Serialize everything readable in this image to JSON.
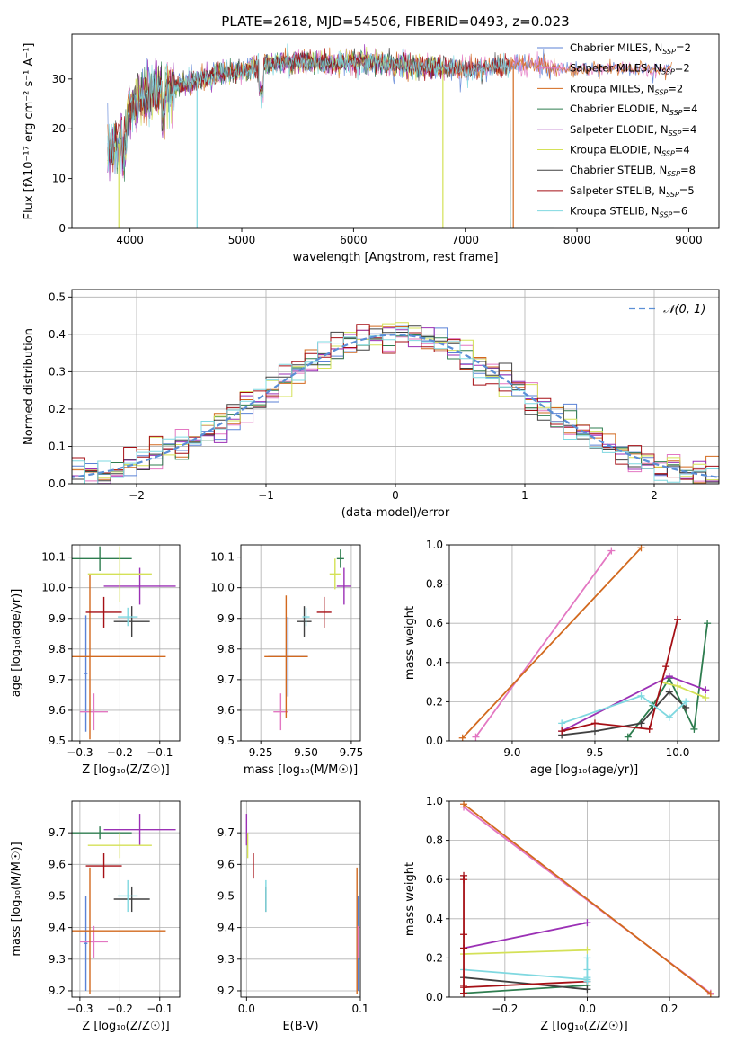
{
  "chart_data": [
    {
      "type": "line",
      "title": "PLATE=2618, MJD=54506, FIBERID=0493, z=0.023",
      "xlabel": "wavelength [Angstrom, rest frame]",
      "ylabel": "Flux [fλ10⁻¹⁷ erg cm⁻² s⁻¹ A⁻¹]",
      "xlim": [
        3480,
        9270
      ],
      "ylim": [
        0,
        39
      ],
      "xticks": [
        "4000",
        "5000",
        "6000",
        "7000",
        "8000",
        "9000"
      ],
      "yticks": [
        "0",
        "10",
        "20",
        "30"
      ],
      "legend_position": "upper right",
      "series": [
        {
          "name": "Chabrier MILES, N_SSP=2",
          "color": "#5b82d6"
        },
        {
          "name": "Salpeter MILES, N_SSP=2",
          "color": "#e377c2"
        },
        {
          "name": "Kroupa MILES, N_SSP=2",
          "color": "#d2691e"
        },
        {
          "name": "Chabrier ELODIE, N_SSP=4",
          "color": "#2e7d4f"
        },
        {
          "name": "Salpeter ELODIE, N_SSP=4",
          "color": "#9b30b5"
        },
        {
          "name": "Kroupa ELODIE, N_SSP=4",
          "color": "#d4e157"
        },
        {
          "name": "Chabrier STELIB, N_SSP=8",
          "color": "#404040"
        },
        {
          "name": "Salpeter STELIB, N_SSP=5",
          "color": "#a50f15"
        },
        {
          "name": "Kroupa STELIB, N_SSP=6",
          "color": "#7fd8e0"
        }
      ],
      "continuum": {
        "x": [
          3800,
          3900,
          4000,
          4100,
          4300,
          4500,
          4800,
          5000,
          5200,
          5500,
          5800,
          6000,
          6300,
          6600,
          7000,
          7300,
          7600,
          7800
        ],
        "y": [
          15,
          17,
          24,
          26,
          28,
          29,
          31,
          31.5,
          33,
          33.5,
          33,
          33.5,
          33,
          32.5,
          32,
          32.5,
          33,
          32
        ]
      },
      "drops_x": [
        3900,
        4600,
        6800,
        7430
      ]
    },
    {
      "type": "bar",
      "xlabel": "(data-model)/error",
      "ylabel": "Normed distribution",
      "xlim": [
        -2.5,
        2.5
      ],
      "ylim": [
        0,
        0.52
      ],
      "xticks": [
        "−2",
        "−1",
        "0",
        "1",
        "2"
      ],
      "yticks": [
        "0.0",
        "0.1",
        "0.2",
        "0.3",
        "0.4",
        "0.5"
      ],
      "legend": "𝒩(0, 1)",
      "reference_curve": "gaussian mean 0, sigma 1",
      "histogram_bin_width": 0.1
    },
    {
      "type": "scatter",
      "xlabel": "Z [log₁₀(Z/Z☉)]",
      "ylabel": "age  [log₁₀(age/yr)]",
      "xlim": [
        -0.32,
        -0.05
      ],
      "ylim": [
        9.5,
        10.14
      ],
      "xticks": [
        "−0.3",
        "−0.2",
        "−0.1"
      ],
      "yticks": [
        "9.5",
        "9.6",
        "9.7",
        "9.8",
        "9.9",
        "10.0",
        "10.1"
      ],
      "points": [
        {
          "color": "#5b82d6",
          "x": -0.285,
          "xerr": 0.004,
          "y": 9.72,
          "yerr": 0.19
        },
        {
          "color": "#e377c2",
          "x": -0.265,
          "xerr": 0.035,
          "y": 9.595,
          "yerr": 0.06
        },
        {
          "color": "#d2691e",
          "x": -0.275,
          "xerr": 0.19,
          "y": 9.775,
          "yerr": 0.27
        },
        {
          "color": "#2e7d4f",
          "x": -0.25,
          "xerr": 0.08,
          "y": 10.095,
          "yerr": 0.04
        },
        {
          "color": "#9b30b5",
          "x": -0.15,
          "xerr": 0.09,
          "y": 10.005,
          "yerr": 0.06
        },
        {
          "color": "#d4e157",
          "x": -0.2,
          "xerr": 0.08,
          "y": 10.045,
          "yerr": 0.09
        },
        {
          "color": "#404040",
          "x": -0.17,
          "xerr": 0.045,
          "y": 9.89,
          "yerr": 0.05
        },
        {
          "color": "#a50f15",
          "x": -0.24,
          "xerr": 0.045,
          "y": 9.92,
          "yerr": 0.05
        },
        {
          "color": "#7fd8e0",
          "x": -0.18,
          "xerr": 0.025,
          "y": 9.905,
          "yerr": 0.03
        }
      ]
    },
    {
      "type": "scatter",
      "xlabel": "mass [log₁₀(M/M☉)]",
      "ylabel": "",
      "xlim": [
        9.14,
        9.8
      ],
      "ylim": [
        9.5,
        10.14
      ],
      "xticks": [
        "9.25",
        "9.50",
        "9.75"
      ],
      "yticks": [
        "9.5",
        "9.6",
        "9.7",
        "9.8",
        "9.9",
        "10.0",
        "10.1"
      ],
      "points": [
        {
          "color": "#5b82d6",
          "x": 9.4,
          "xerr": 0.11,
          "y": 9.775,
          "yerr": 0.13
        },
        {
          "color": "#e377c2",
          "x": 9.36,
          "xerr": 0.04,
          "y": 9.595,
          "yerr": 0.06
        },
        {
          "color": "#d2691e",
          "x": 9.39,
          "xerr": 0.12,
          "y": 9.775,
          "yerr": 0.2
        },
        {
          "color": "#2e7d4f",
          "x": 9.69,
          "xerr": 0.02,
          "y": 10.095,
          "yerr": 0.03
        },
        {
          "color": "#9b30b5",
          "x": 9.71,
          "xerr": 0.04,
          "y": 10.005,
          "yerr": 0.06
        },
        {
          "color": "#d4e157",
          "x": 9.66,
          "xerr": 0.03,
          "y": 10.045,
          "yerr": 0.05
        },
        {
          "color": "#404040",
          "x": 9.49,
          "xerr": 0.04,
          "y": 9.89,
          "yerr": 0.05
        },
        {
          "color": "#a50f15",
          "x": 9.6,
          "xerr": 0.04,
          "y": 9.92,
          "yerr": 0.05
        },
        {
          "color": "#7fd8e0",
          "x": 9.5,
          "xerr": 0.02,
          "y": 9.905,
          "yerr": 0.03
        }
      ]
    },
    {
      "type": "line",
      "xlabel": "age  [log₁₀(age/yr)]",
      "ylabel": "mass weight",
      "xlim": [
        8.62,
        10.25
      ],
      "ylim": [
        0,
        1
      ],
      "xticks": [
        "9.0",
        "9.5",
        "10.0"
      ],
      "yticks": [
        "0.0",
        "0.2",
        "0.4",
        "0.6",
        "0.8",
        "1.0"
      ],
      "series": [
        {
          "color": "#e377c2",
          "x": [
            8.78,
            9.6
          ],
          "y": [
            0.02,
            0.97
          ]
        },
        {
          "color": "#d2691e",
          "x": [
            8.7,
            9.78
          ],
          "y": [
            0.015,
            0.985
          ]
        },
        {
          "color": "#2e7d4f",
          "x": [
            9.7,
            9.85,
            9.95,
            10.1,
            10.18
          ],
          "y": [
            0.02,
            0.18,
            0.32,
            0.06,
            0.6
          ]
        },
        {
          "color": "#9b30b5",
          "x": [
            9.3,
            9.95,
            10.17
          ],
          "y": [
            0.05,
            0.33,
            0.26
          ]
        },
        {
          "color": "#d4e157",
          "x": [
            9.9,
            10.0,
            10.17
          ],
          "y": [
            0.3,
            0.28,
            0.22
          ]
        },
        {
          "color": "#404040",
          "x": [
            9.3,
            9.5,
            9.78,
            9.95,
            10.05
          ],
          "y": [
            0.03,
            0.05,
            0.09,
            0.25,
            0.17
          ]
        },
        {
          "color": "#a50f15",
          "x": [
            9.3,
            9.5,
            9.83,
            9.93,
            10.0
          ],
          "y": [
            0.05,
            0.09,
            0.06,
            0.38,
            0.62
          ]
        },
        {
          "color": "#7fd8e0",
          "x": [
            9.3,
            9.78,
            9.95,
            10.05
          ],
          "y": [
            0.09,
            0.23,
            0.12,
            0.2
          ]
        }
      ]
    },
    {
      "type": "scatter",
      "xlabel": "Z [log₁₀(Z/Z☉)]",
      "ylabel": "mass [log₁₀(M/M☉)]",
      "xlim": [
        -0.32,
        -0.05
      ],
      "ylim": [
        9.18,
        9.8
      ],
      "xticks": [
        "−0.3",
        "−0.2",
        "−0.1"
      ],
      "yticks": [
        "9.2",
        "9.3",
        "9.4",
        "9.5",
        "9.6",
        "9.7"
      ],
      "points": [
        {
          "color": "#5b82d6",
          "x": -0.285,
          "xerr": 0.004,
          "y": 9.35,
          "yerr": 0.15
        },
        {
          "color": "#e377c2",
          "x": -0.265,
          "xerr": 0.035,
          "y": 9.355,
          "yerr": 0.05
        },
        {
          "color": "#d2691e",
          "x": -0.275,
          "xerr": 0.19,
          "y": 9.39,
          "yerr": 0.2
        },
        {
          "color": "#2e7d4f",
          "x": -0.25,
          "xerr": 0.08,
          "y": 9.7,
          "yerr": 0.02
        },
        {
          "color": "#9b30b5",
          "x": -0.15,
          "xerr": 0.09,
          "y": 9.71,
          "yerr": 0.05
        },
        {
          "color": "#d4e157",
          "x": -0.2,
          "xerr": 0.08,
          "y": 9.66,
          "yerr": 0.04
        },
        {
          "color": "#404040",
          "x": -0.17,
          "xerr": 0.045,
          "y": 9.49,
          "yerr": 0.04
        },
        {
          "color": "#a50f15",
          "x": -0.24,
          "xerr": 0.045,
          "y": 9.595,
          "yerr": 0.04
        },
        {
          "color": "#7fd8e0",
          "x": -0.18,
          "xerr": 0.025,
          "y": 9.5,
          "yerr": 0.05
        }
      ]
    },
    {
      "type": "scatter",
      "xlabel": "E(B-V)",
      "ylabel": "",
      "xlim": [
        -0.005,
        0.1
      ],
      "ylim": [
        9.18,
        9.8
      ],
      "xticks": [
        "0.0",
        "0.1"
      ],
      "yticks": [
        "9.2",
        "9.3",
        "9.4",
        "9.5",
        "9.6",
        "9.7"
      ],
      "points": [
        {
          "color": "#5b82d6",
          "x": 0.098,
          "yerr": 0.15,
          "y": 9.35
        },
        {
          "color": "#d2691e",
          "x": 0.097,
          "yerr": 0.2,
          "y": 9.39
        },
        {
          "color": "#e377c2",
          "x": 0.098,
          "yerr": 0.05,
          "y": 9.355
        },
        {
          "color": "#9b30b5",
          "x": 0.0,
          "yerr": 0.05,
          "y": 9.71
        },
        {
          "color": "#d4e157",
          "x": 0.001,
          "yerr": 0.04,
          "y": 9.66
        },
        {
          "color": "#a50f15",
          "x": 0.006,
          "yerr": 0.04,
          "y": 9.595
        },
        {
          "color": "#404040",
          "x": 0.017,
          "yerr": 0.04,
          "y": 9.49
        },
        {
          "color": "#7fd8e0",
          "x": 0.017,
          "yerr": 0.05,
          "y": 9.5
        }
      ]
    },
    {
      "type": "line",
      "xlabel": "Z [log₁₀(Z/Z☉)]",
      "ylabel": "mass weight",
      "xlim": [
        -0.335,
        0.32
      ],
      "ylim": [
        0,
        1
      ],
      "xticks": [
        "−0.2",
        "0.0",
        "0.2"
      ],
      "yticks": [
        "0.0",
        "0.2",
        "0.4",
        "0.6",
        "0.8",
        "1.0"
      ],
      "series": [
        {
          "color": "#e377c2",
          "x": [
            -0.3,
            0.3
          ],
          "y": [
            0.97,
            0.02
          ]
        },
        {
          "color": "#d2691e",
          "x": [
            -0.3,
            0.3
          ],
          "y": [
            0.985,
            0.015
          ]
        },
        {
          "color": "#2e7d4f",
          "x": [
            -0.3,
            0.0
          ],
          "y": [
            0.02,
            0.06
          ]
        },
        {
          "color": "#9b30b5",
          "x": [
            -0.3,
            0.0
          ],
          "y": [
            0.25,
            0.38
          ]
        },
        {
          "color": "#d4e157",
          "x": [
            -0.3,
            0.0
          ],
          "y": [
            0.22,
            0.24
          ]
        },
        {
          "color": "#404040",
          "x": [
            -0.3,
            0.0
          ],
          "y": [
            0.1,
            0.04
          ]
        },
        {
          "color": "#a50f15",
          "x": [
            -0.3,
            0.0
          ],
          "y": [
            0.05,
            0.08
          ]
        },
        {
          "color": "#7fd8e0",
          "x": [
            -0.3,
            0.0
          ],
          "y": [
            0.14,
            0.09
          ]
        }
      ],
      "vertical_stacks": [
        {
          "color": "#a50f15",
          "x": -0.3,
          "y": [
            0.02,
            0.06,
            0.25,
            0.32,
            0.6,
            0.62
          ]
        },
        {
          "color": "#7fd8e0",
          "x": 0.0,
          "y": [
            0.08,
            0.1,
            0.14,
            0.2
          ]
        }
      ]
    }
  ]
}
